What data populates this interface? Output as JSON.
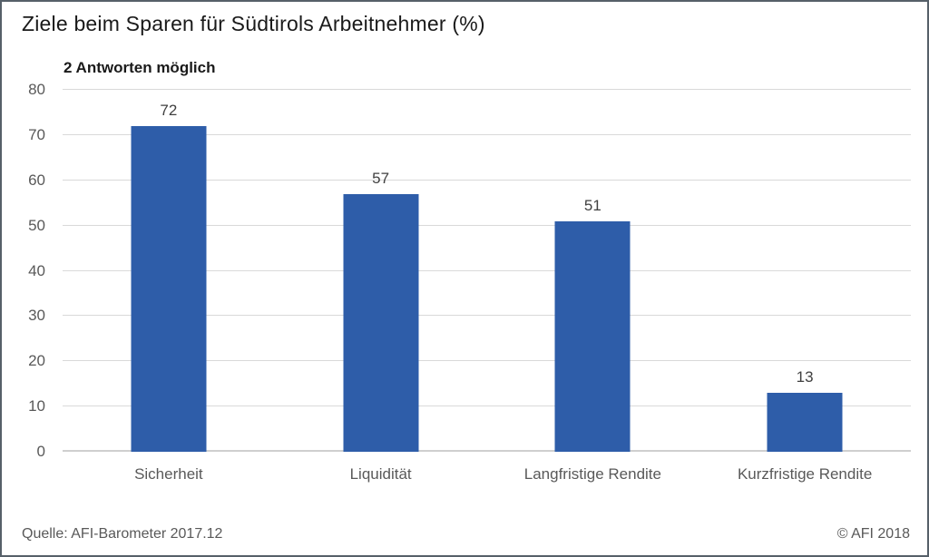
{
  "header": {
    "title": "Ziele beim Sparen für Südtirols Arbeitnehmer (%)",
    "subtitle": "2 Antworten möglich"
  },
  "footer": {
    "source": "Quelle: AFI-Barometer 2017.12",
    "copyright": "© AFI 2018"
  },
  "colors": {
    "bar": "#2E5DA9",
    "gridline": "#D9D9D9",
    "axis_line": "#CFCFCF",
    "tick_text": "#595959",
    "data_label": "#404040",
    "frame_border": "#566069"
  },
  "chart_data": {
    "type": "bar",
    "title": "Ziele beim Sparen für Südtirols Arbeitnehmer (%)",
    "subtitle": "2 Antworten möglich",
    "categories": [
      "Sicherheit",
      "Liquidität",
      "Langfristige Rendite",
      "Kurzfristige Rendite"
    ],
    "values": [
      72,
      57,
      51,
      13
    ],
    "xlabel": "",
    "ylabel": "",
    "ylim": [
      0,
      80
    ],
    "ytick_step": 10,
    "grid": true,
    "data_labels": true,
    "legend_position": "none"
  }
}
